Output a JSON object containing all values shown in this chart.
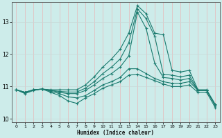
{
  "xlabel": "Humidex (Indice chaleur)",
  "bg_color": "#cdecea",
  "grid_color": "#b8dbd9",
  "line_color": "#1a7a6e",
  "xlim": [
    -0.5,
    23.5
  ],
  "ylim": [
    9.9,
    13.6
  ],
  "yticks": [
    10,
    11,
    12,
    13
  ],
  "xticks": [
    0,
    1,
    2,
    3,
    4,
    5,
    6,
    7,
    8,
    9,
    10,
    11,
    12,
    13,
    14,
    15,
    16,
    17,
    18,
    19,
    20,
    21,
    22,
    23
  ],
  "series": [
    {
      "x": [
        0,
        1,
        2,
        3,
        4,
        5,
        6,
        7,
        8,
        9,
        10,
        11,
        12,
        13,
        14,
        15,
        16,
        17,
        18,
        19,
        20,
        21,
        22,
        23
      ],
      "y": [
        10.9,
        10.82,
        10.9,
        10.92,
        10.9,
        10.9,
        10.9,
        10.9,
        11.05,
        11.3,
        11.6,
        11.85,
        12.15,
        12.65,
        13.5,
        13.25,
        12.65,
        12.6,
        11.5,
        11.45,
        11.5,
        10.9,
        10.9,
        10.45
      ]
    },
    {
      "x": [
        0,
        1,
        2,
        3,
        4,
        5,
        6,
        7,
        8,
        9,
        10,
        11,
        12,
        13,
        14,
        15,
        16,
        17,
        18,
        19,
        20,
        21,
        22,
        23
      ],
      "y": [
        10.9,
        10.82,
        10.9,
        10.92,
        10.88,
        10.85,
        10.83,
        10.83,
        10.95,
        11.15,
        11.4,
        11.6,
        11.85,
        12.35,
        13.4,
        13.1,
        12.55,
        11.38,
        11.35,
        11.3,
        11.35,
        10.88,
        10.88,
        10.42
      ]
    },
    {
      "x": [
        0,
        1,
        2,
        3,
        4,
        5,
        6,
        7,
        8,
        9,
        10,
        11,
        12,
        13,
        14,
        15,
        16,
        17,
        18,
        19,
        20,
        21,
        22,
        23
      ],
      "y": [
        10.9,
        10.82,
        10.9,
        10.92,
        10.88,
        10.82,
        10.78,
        10.78,
        10.88,
        11.05,
        11.25,
        11.4,
        11.6,
        11.95,
        13.3,
        12.8,
        11.72,
        11.28,
        11.25,
        11.2,
        11.25,
        10.88,
        10.88,
        10.42
      ]
    },
    {
      "x": [
        0,
        1,
        2,
        3,
        4,
        5,
        6,
        7,
        8,
        9,
        10,
        11,
        12,
        13,
        14,
        15,
        16,
        17,
        18,
        19,
        20,
        21,
        22,
        23
      ],
      "y": [
        10.9,
        10.82,
        10.9,
        10.92,
        10.85,
        10.78,
        10.68,
        10.65,
        10.72,
        10.88,
        11.05,
        11.15,
        11.28,
        11.55,
        11.55,
        11.4,
        11.25,
        11.15,
        11.1,
        11.1,
        11.15,
        10.88,
        10.88,
        10.42
      ]
    },
    {
      "x": [
        0,
        1,
        2,
        3,
        4,
        5,
        6,
        7,
        8,
        9,
        10,
        11,
        12,
        13,
        14,
        15,
        16,
        17,
        18,
        19,
        20,
        21,
        22,
        23
      ],
      "y": [
        10.9,
        10.78,
        10.88,
        10.92,
        10.82,
        10.72,
        10.55,
        10.48,
        10.65,
        10.78,
        10.95,
        11.05,
        11.15,
        11.35,
        11.38,
        11.28,
        11.18,
        11.08,
        11.0,
        11.0,
        11.05,
        10.82,
        10.82,
        10.35
      ]
    }
  ]
}
